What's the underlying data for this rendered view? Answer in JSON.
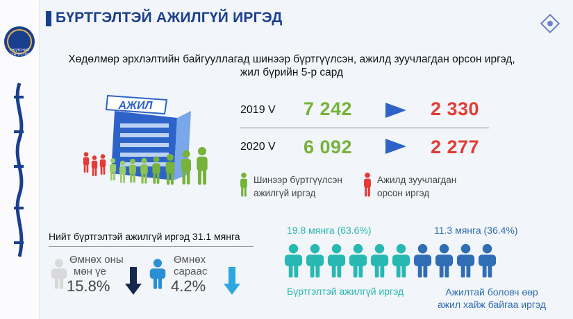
{
  "logo": {
    "text": "ҮНДЭСНИЙ СТАТИСТИК"
  },
  "title": "БҮРТГЭЛТЭЙ АЖИЛГҮЙ ИРГЭД",
  "subtitle": [
    "Хөдөлмөр эрхлэлтийн байгууллагад шинээр бүртгүүлсэн, ажилд зуучлагдан орсон иргэд,",
    "жил бүрийн 5-р сард"
  ],
  "building_sign": "АЖИЛ",
  "rows": [
    {
      "period": "2019 V",
      "registered": "7 242",
      "placed": "2 330"
    },
    {
      "period": "2020 V",
      "registered": "6 092",
      "placed": "2 277"
    }
  ],
  "legend": [
    {
      "lines": [
        "Шинээр бүртгүүлсэн",
        "ажилгүй иргэд"
      ],
      "color": "#76b33a"
    },
    {
      "lines": [
        "Ажилд зуучлагдан",
        "орсон иргэд"
      ],
      "color": "#e53a35"
    }
  ],
  "total": "Нийт бүртгэлтэй ажилгүй иргэд 31.1 мянга",
  "changes": [
    {
      "lines": [
        "Өмнөх оны",
        "мөн үе"
      ],
      "value": "15.8%"
    },
    {
      "lines": [
        "Өмнөх",
        "сараас"
      ],
      "value": "4.2%"
    }
  ],
  "groups": [
    {
      "amount": "19.8 мянга (63.6%)",
      "lines": [
        "Бүртгэлтэй ажилгүй иргэд"
      ]
    },
    {
      "amount": "11.3 мянга (36.4%)",
      "lines": [
        "Ажилтай боловч өөр",
        "ажил хайж байгаа иргэд"
      ]
    }
  ]
}
